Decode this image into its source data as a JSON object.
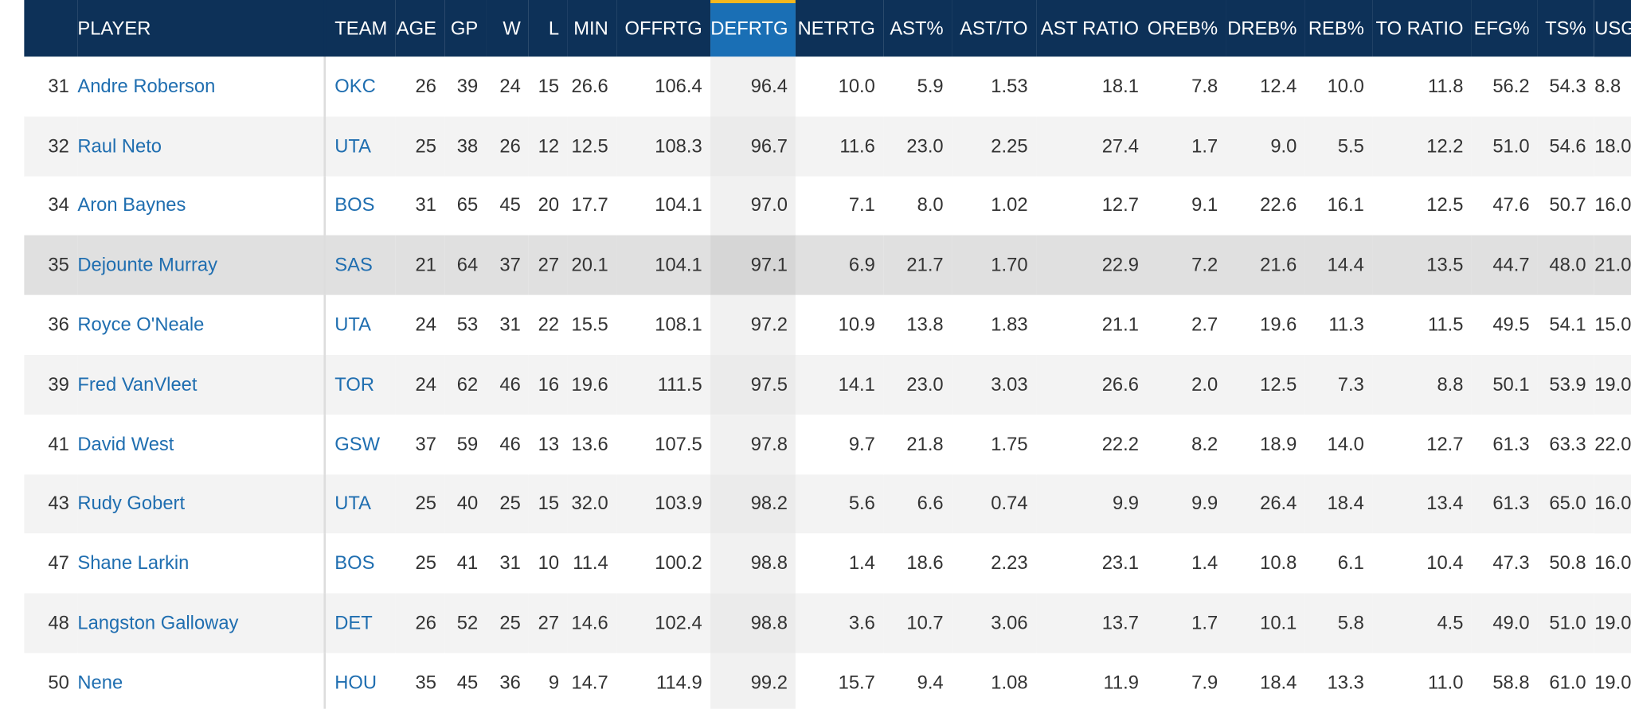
{
  "columns": [
    "",
    "PLAYER",
    "TEAM",
    "AGE",
    "GP",
    "W",
    "L",
    "MIN",
    "OFFRTG",
    "DEFRTG",
    "NETRTG",
    "AST%",
    "AST/TO",
    "AST RATIO",
    "OREB%",
    "DREB%",
    "REB%",
    "TO RATIO",
    "EFG%",
    "TS%",
    "USG%"
  ],
  "sorted_column": "DEFRTG",
  "colors": {
    "header_bg": "#0d3158",
    "sorted_header": "#1a6fb5",
    "sort_indicator": "#f2b71f",
    "link": "#1f6eb0"
  },
  "rows": [
    [
      "31",
      "Andre Roberson",
      "OKC",
      "26",
      "39",
      "24",
      "15",
      "26.6",
      "106.4",
      "96.4",
      "10.0",
      "5.9",
      "1.53",
      "18.1",
      "7.8",
      "12.4",
      "10.0",
      "11.8",
      "56.2",
      "54.3",
      "8.8"
    ],
    [
      "32",
      "Raul Neto",
      "UTA",
      "25",
      "38",
      "26",
      "12",
      "12.5",
      "108.3",
      "96.7",
      "11.6",
      "23.0",
      "2.25",
      "27.4",
      "1.7",
      "9.0",
      "5.5",
      "12.2",
      "51.0",
      "54.6",
      "18.0"
    ],
    [
      "34",
      "Aron Baynes",
      "BOS",
      "31",
      "65",
      "45",
      "20",
      "17.7",
      "104.1",
      "97.0",
      "7.1",
      "8.0",
      "1.02",
      "12.7",
      "9.1",
      "22.6",
      "16.1",
      "12.5",
      "47.6",
      "50.7",
      "16.0"
    ],
    [
      "35",
      "Dejounte Murray",
      "SAS",
      "21",
      "64",
      "37",
      "27",
      "20.1",
      "104.1",
      "97.1",
      "6.9",
      "21.7",
      "1.70",
      "22.9",
      "7.2",
      "21.6",
      "14.4",
      "13.5",
      "44.7",
      "48.0",
      "21.0"
    ],
    [
      "36",
      "Royce O'Neale",
      "UTA",
      "24",
      "53",
      "31",
      "22",
      "15.5",
      "108.1",
      "97.2",
      "10.9",
      "13.8",
      "1.83",
      "21.1",
      "2.7",
      "19.6",
      "11.3",
      "11.5",
      "49.5",
      "54.1",
      "15.0"
    ],
    [
      "39",
      "Fred VanVleet",
      "TOR",
      "24",
      "62",
      "46",
      "16",
      "19.6",
      "111.5",
      "97.5",
      "14.1",
      "23.0",
      "3.03",
      "26.6",
      "2.0",
      "12.5",
      "7.3",
      "8.8",
      "50.1",
      "53.9",
      "19.0"
    ],
    [
      "41",
      "David West",
      "GSW",
      "37",
      "59",
      "46",
      "13",
      "13.6",
      "107.5",
      "97.8",
      "9.7",
      "21.8",
      "1.75",
      "22.2",
      "8.2",
      "18.9",
      "14.0",
      "12.7",
      "61.3",
      "63.3",
      "22.0"
    ],
    [
      "43",
      "Rudy Gobert",
      "UTA",
      "25",
      "40",
      "25",
      "15",
      "32.0",
      "103.9",
      "98.2",
      "5.6",
      "6.6",
      "0.74",
      "9.9",
      "9.9",
      "26.4",
      "18.4",
      "13.4",
      "61.3",
      "65.0",
      "16.0"
    ],
    [
      "47",
      "Shane Larkin",
      "BOS",
      "25",
      "41",
      "31",
      "10",
      "11.4",
      "100.2",
      "98.8",
      "1.4",
      "18.6",
      "2.23",
      "23.1",
      "1.4",
      "10.8",
      "6.1",
      "10.4",
      "47.3",
      "50.8",
      "16.0"
    ],
    [
      "48",
      "Langston Galloway",
      "DET",
      "26",
      "52",
      "25",
      "27",
      "14.6",
      "102.4",
      "98.8",
      "3.6",
      "10.7",
      "3.06",
      "13.7",
      "1.7",
      "10.1",
      "5.8",
      "4.5",
      "49.0",
      "51.0",
      "19.0"
    ],
    [
      "50",
      "Nene",
      "HOU",
      "35",
      "45",
      "36",
      "9",
      "14.7",
      "114.9",
      "99.2",
      "15.7",
      "9.4",
      "1.08",
      "11.9",
      "7.9",
      "18.4",
      "13.3",
      "11.0",
      "58.8",
      "61.0",
      "19.0"
    ]
  ]
}
